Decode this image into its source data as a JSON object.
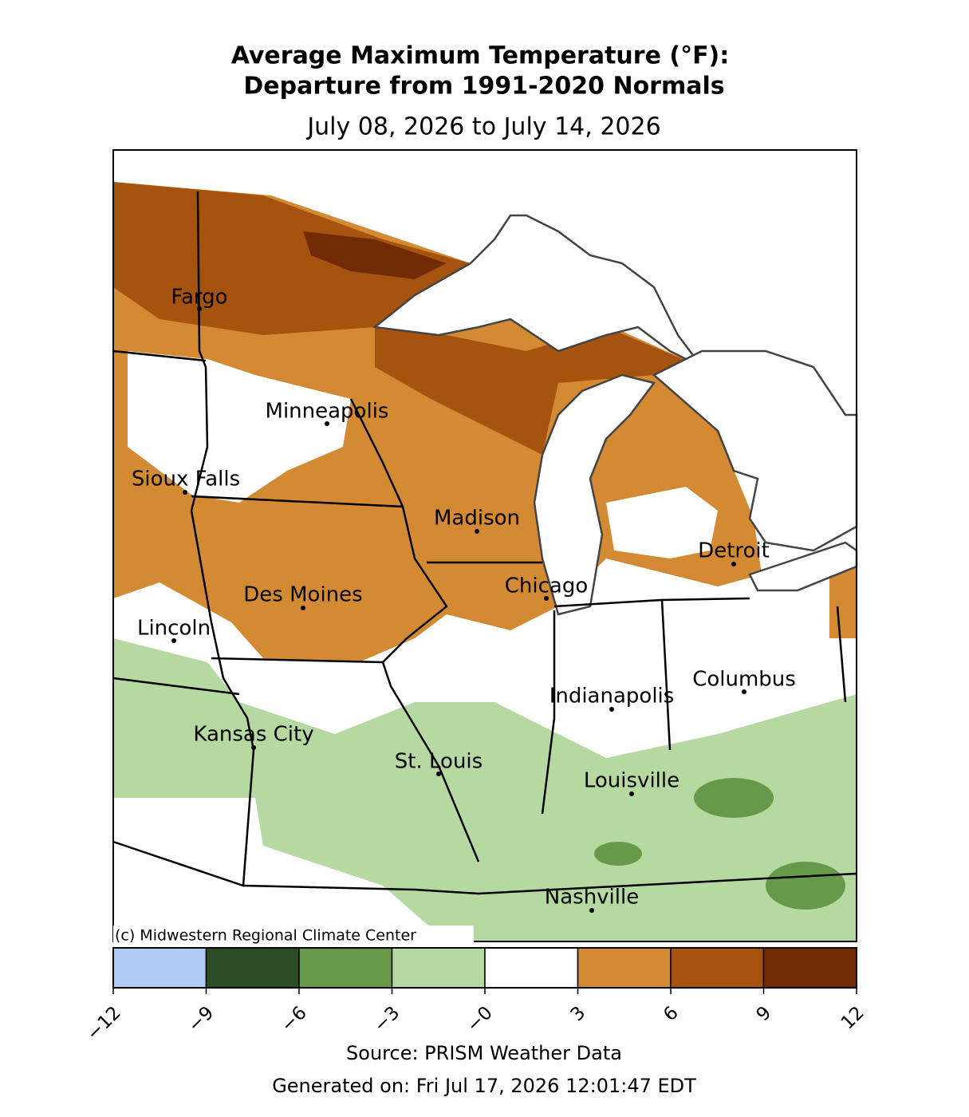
{
  "title": {
    "line1": "Average Maximum Temperature (°F):",
    "line2": "Departure from 1991-2020 Normals"
  },
  "subtitle": "July 08, 2026 to July 14, 2026",
  "cities": [
    "Fargo",
    "Minneapolis",
    "Sioux Falls",
    "Madison",
    "Chicago",
    "Detroit",
    "Des Moines",
    "Lincoln",
    "Columbus",
    "Indianapolis",
    "Kansas City",
    "St. Louis",
    "Louisville",
    "Nashville"
  ],
  "copyright": "(c) Midwestern Regional Climate Center",
  "colorbar": {
    "colors": [
      "#b0cbf5",
      "#2a4d24",
      "#67994a",
      "#b5d9a0",
      "#ffffff",
      "#d48a33",
      "#a65310",
      "#722c05"
    ],
    "ticks": [
      {
        "value": -12,
        "label": "−12"
      },
      {
        "value": -9,
        "label": "−9"
      },
      {
        "value": -6,
        "label": "−6"
      },
      {
        "value": -3,
        "label": "−3"
      },
      {
        "value": 0,
        "label": "−0"
      },
      3,
      6,
      9,
      12
    ]
  },
  "source": "Source: PRISM Weather Data",
  "generated": "Generated on: Fri Jul 17, 2026 12:01:47 EDT"
}
